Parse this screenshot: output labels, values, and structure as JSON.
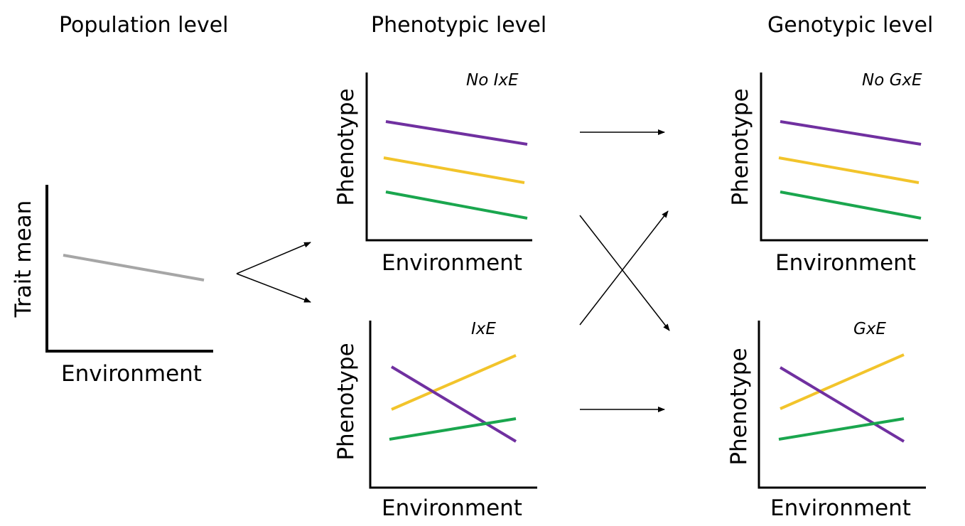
{
  "headings": {
    "population": "Population level",
    "phenotypic": "Phenotypic level",
    "genotypic": "Genotypic level"
  },
  "population_panel": {
    "ylabel": "Trait mean",
    "xlabel": "Environment"
  },
  "panels": {
    "pheno_no_ixe": {
      "ylabel": "Phenotype",
      "xlabel": "Environment",
      "tag": "No IxE"
    },
    "pheno_ixe": {
      "ylabel": "Phenotype",
      "xlabel": "Environment",
      "tag": "IxE"
    },
    "geno_no_gxe": {
      "ylabel": "Phenotype",
      "xlabel": "Environment",
      "tag": "No GxE"
    },
    "geno_gxe": {
      "ylabel": "Phenotype",
      "xlabel": "Environment",
      "tag": "GxE"
    }
  },
  "colors": {
    "purple": "#7030a0",
    "yellow": "#f2c42b",
    "green": "#1aa64e",
    "grey": "#a6a6a6",
    "axis": "#000000"
  }
}
